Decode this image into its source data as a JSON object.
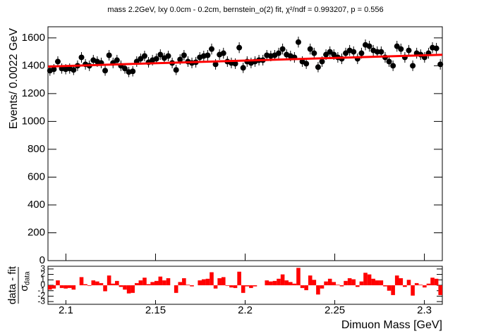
{
  "chart_data": [
    {
      "type": "errorbar",
      "title": "mass 2.2GeV, lxy 0.0cm - 0.2cm, bernstein_o(2) fit,        χ²/ndf = 0.993207, p = 0.556",
      "ylabel": "Events/ 0.0022 GeV",
      "xlabel": "Dimuon Mass [GeV]",
      "xlim": [
        2.09,
        2.31
      ],
      "xticks": [
        2.1,
        2.15,
        2.2,
        2.25,
        2.3
      ],
      "ylim": [
        0,
        1680
      ],
      "yticks": [
        0,
        200,
        400,
        600,
        800,
        1000,
        1200,
        1400,
        1600
      ],
      "x": [
        2.0911,
        2.0933,
        2.0955,
        2.0977,
        2.0999,
        2.1021,
        2.1043,
        2.1065,
        2.1087,
        2.1109,
        2.1131,
        2.1153,
        2.1175,
        2.1197,
        2.1219,
        2.1241,
        2.1263,
        2.1285,
        2.1307,
        2.1329,
        2.1351,
        2.1373,
        2.1395,
        2.1417,
        2.1439,
        2.1461,
        2.1483,
        2.1505,
        2.1527,
        2.1549,
        2.1571,
        2.1593,
        2.1615,
        2.1637,
        2.1659,
        2.1681,
        2.1703,
        2.1725,
        2.1747,
        2.1769,
        2.1791,
        2.1813,
        2.1835,
        2.1857,
        2.1879,
        2.1901,
        2.1923,
        2.1945,
        2.1967,
        2.1989,
        2.2011,
        2.2033,
        2.2055,
        2.2077,
        2.2099,
        2.2121,
        2.2143,
        2.2165,
        2.2187,
        2.2209,
        2.2231,
        2.2253,
        2.2275,
        2.2297,
        2.2319,
        2.2341,
        2.2363,
        2.2385,
        2.2407,
        2.2429,
        2.2451,
        2.2473,
        2.2495,
        2.2517,
        2.2539,
        2.2561,
        2.2583,
        2.2605,
        2.2627,
        2.2649,
        2.2671,
        2.2693,
        2.2715,
        2.2737,
        2.2759,
        2.2781,
        2.2803,
        2.2825,
        2.2847,
        2.2869,
        2.2891,
        2.2913,
        2.2935,
        2.2957,
        2.2979,
        2.3001,
        2.3023,
        2.3045,
        2.3067,
        2.3089
      ],
      "series": [
        {
          "name": "data",
          "color": "#000000",
          "values": [
            1365,
            1375,
            1430,
            1380,
            1375,
            1380,
            1370,
            1400,
            1460,
            1410,
            1400,
            1440,
            1430,
            1420,
            1365,
            1475,
            1420,
            1440,
            1400,
            1380,
            1355,
            1360,
            1430,
            1450,
            1470,
            1425,
            1440,
            1450,
            1480,
            1455,
            1470,
            1420,
            1370,
            1445,
            1475,
            1430,
            1420,
            1425,
            1460,
            1470,
            1475,
            1520,
            1410,
            1480,
            1490,
            1430,
            1420,
            1415,
            1530,
            1385,
            1430,
            1420,
            1430,
            1440,
            1440,
            1475,
            1470,
            1475,
            1490,
            1520,
            1480,
            1470,
            1460,
            1570,
            1430,
            1415,
            1520,
            1490,
            1390,
            1430,
            1480,
            1500,
            1480,
            1460,
            1450,
            1490,
            1510,
            1500,
            1450,
            1490,
            1550,
            1540,
            1510,
            1500,
            1500,
            1460,
            1430,
            1400,
            1540,
            1520,
            1460,
            1510,
            1400,
            1490,
            1480,
            1460,
            1490,
            1530,
            1525,
            1410
          ],
          "errors": [
            37,
            37,
            38,
            37,
            37,
            37,
            37,
            38,
            38,
            38,
            38,
            38,
            38,
            38,
            37,
            38,
            38,
            38,
            38,
            37,
            37,
            37,
            38,
            38,
            38,
            38,
            38,
            38,
            38,
            38,
            38,
            38,
            37,
            38,
            38,
            38,
            38,
            38,
            38,
            38,
            38,
            39,
            38,
            38,
            39,
            38,
            38,
            38,
            39,
            37,
            38,
            38,
            38,
            38,
            38,
            38,
            38,
            38,
            39,
            39,
            38,
            38,
            38,
            39,
            38,
            38,
            39,
            39,
            37,
            38,
            38,
            39,
            38,
            38,
            38,
            39,
            39,
            39,
            38,
            39,
            39,
            39,
            39,
            39,
            39,
            38,
            38,
            38,
            39,
            39,
            38,
            39,
            38,
            39,
            38,
            38,
            39,
            39,
            39,
            38
          ]
        }
      ],
      "fit": {
        "color": "#ff0000",
        "x": [
          2.09,
          2.145,
          2.2,
          2.255,
          2.31
        ],
        "values": [
          1394,
          1416,
          1437,
          1458,
          1479
        ]
      }
    },
    {
      "type": "bar",
      "ylabel": {
        "numerator": "data - fit",
        "denominator": "σ",
        "subscript": "data"
      },
      "ylim": [
        -3.5,
        3.5
      ],
      "yticks": [
        -3,
        -2,
        -1,
        0,
        1,
        2,
        3
      ],
      "color": "#ff0000",
      "values": [
        -0.8,
        -0.6,
        0.9,
        -0.5,
        -0.6,
        -0.5,
        -0.8,
        0.0,
        1.5,
        0.2,
        -0.1,
        0.9,
        0.7,
        0.4,
        -1.1,
        1.8,
        0.3,
        0.8,
        -0.3,
        -0.8,
        -1.5,
        -1.4,
        0.4,
        0.9,
        1.4,
        0.2,
        0.6,
        0.8,
        1.6,
        0.9,
        1.3,
        0.0,
        -1.4,
        0.6,
        1.3,
        0.1,
        -0.2,
        0.0,
        0.9,
        1.1,
        1.2,
        2.4,
        -0.6,
        1.3,
        1.5,
        -0.1,
        -0.4,
        -0.5,
        2.5,
        -1.4,
        -0.2,
        -0.5,
        -0.2,
        0.0,
        0.0,
        0.9,
        0.7,
        0.8,
        1.2,
        2.0,
        0.9,
        0.6,
        0.3,
        3.2,
        -0.5,
        -0.9,
        1.8,
        1.0,
        -1.7,
        -0.6,
        0.7,
        1.2,
        0.6,
        0.1,
        -0.2,
        0.8,
        1.3,
        1.1,
        -0.3,
        0.7,
        2.3,
        2.0,
        1.2,
        0.9,
        0.9,
        -0.2,
        -1.0,
        -1.8,
        1.8,
        1.3,
        -0.3,
        1.0,
        -1.9,
        0.4,
        0.1,
        -0.4,
        0.3,
        1.4,
        1.2,
        -1.8
      ]
    }
  ]
}
